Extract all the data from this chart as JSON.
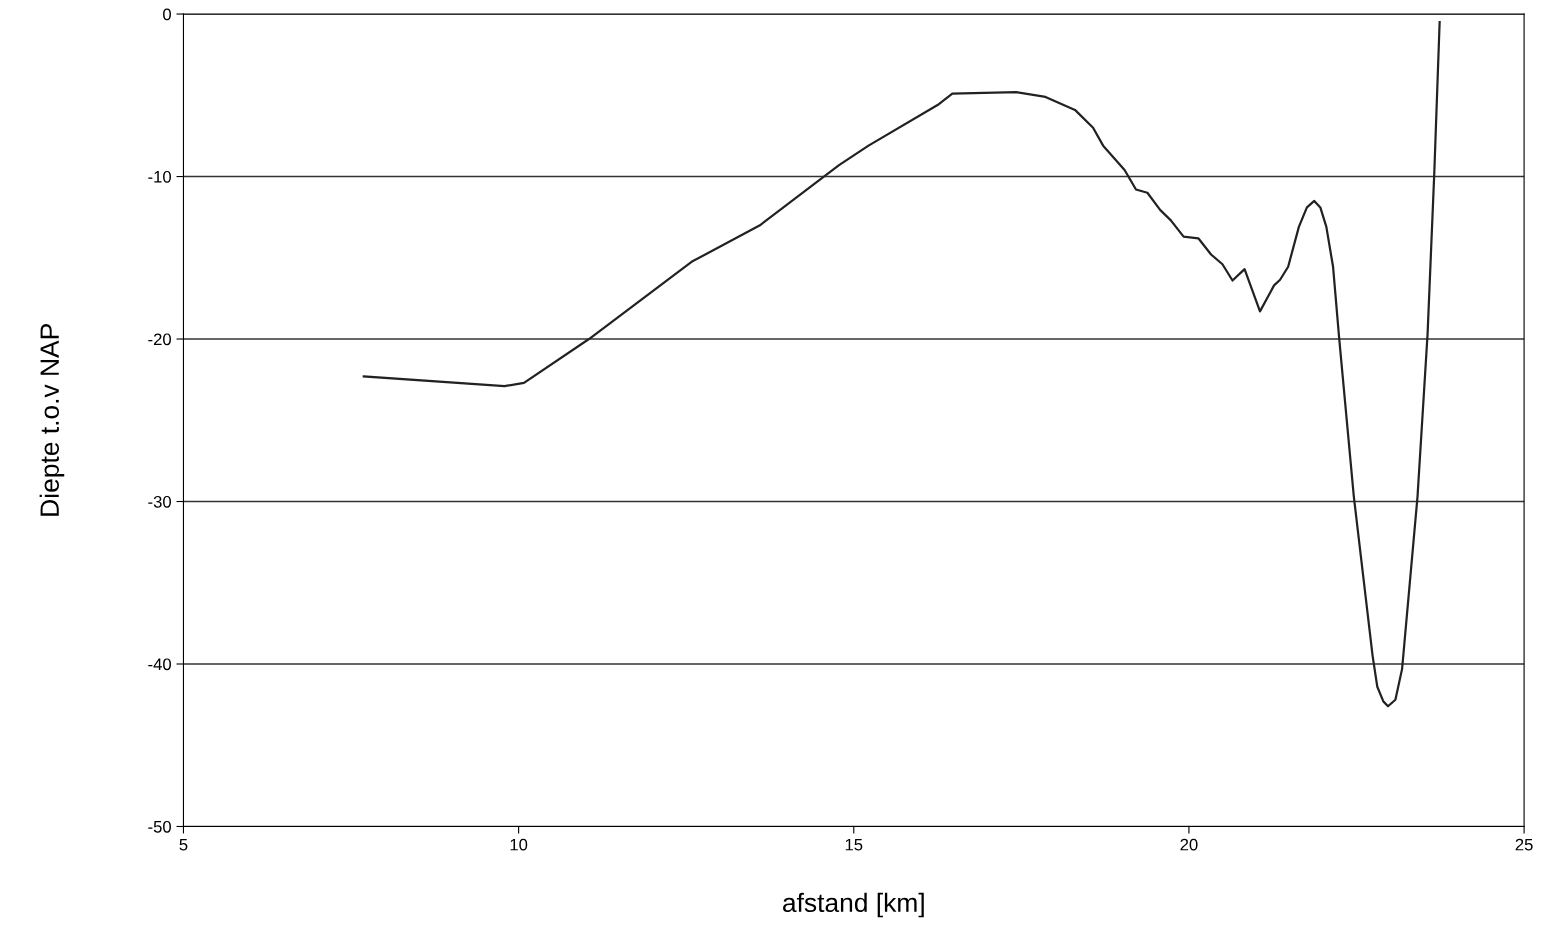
{
  "chart_data": {
    "type": "line",
    "xlabel": "afstand [km]",
    "ylabel": "Diepte t.o.v NAP",
    "x": [
      7.69,
      9.79,
      10.08,
      11.05,
      12.58,
      13.6,
      14.78,
      15.22,
      16.25,
      16.47,
      17.42,
      17.86,
      18.3,
      18.57,
      18.72,
      19.04,
      19.21,
      19.38,
      19.57,
      19.73,
      19.92,
      20.14,
      20.33,
      20.5,
      20.65,
      20.83,
      21.06,
      21.27,
      21.36,
      21.48,
      21.64,
      21.76,
      21.87,
      21.96,
      22.05,
      22.15,
      22.24,
      22.46,
      22.74,
      22.81,
      22.9,
      22.97,
      23.08,
      23.18,
      23.41,
      23.56,
      23.66,
      23.74
    ],
    "series": [
      {
        "color": "#222222",
        "values": [
          -22.3,
          -22.9,
          -22.7,
          -20.0,
          -15.25,
          -13.0,
          -9.3,
          -8.1,
          -5.6,
          -4.9,
          -4.8,
          -5.1,
          -5.9,
          -7.0,
          -8.1,
          -9.6,
          -10.8,
          -11.0,
          -12.05,
          -12.7,
          -13.7,
          -13.8,
          -14.8,
          -15.4,
          -16.4,
          -15.7,
          -18.3,
          -16.7,
          -16.35,
          -15.55,
          -13.1,
          -11.9,
          -11.5,
          -11.9,
          -13.1,
          -15.55,
          -19.9,
          -29.7,
          -39.5,
          -41.4,
          -42.3,
          -42.6,
          -42.2,
          -40.3,
          -29.7,
          -19.7,
          -9.8,
          -0.5
        ]
      }
    ],
    "xlim": [
      5,
      25
    ],
    "xticks": [
      5,
      10,
      15,
      20,
      25
    ],
    "ylim": [
      -50,
      0
    ],
    "yticks": [
      -50,
      -40,
      -30,
      -20,
      -10,
      0
    ],
    "grid": "y",
    "line_style": "solid",
    "marker": "none"
  }
}
